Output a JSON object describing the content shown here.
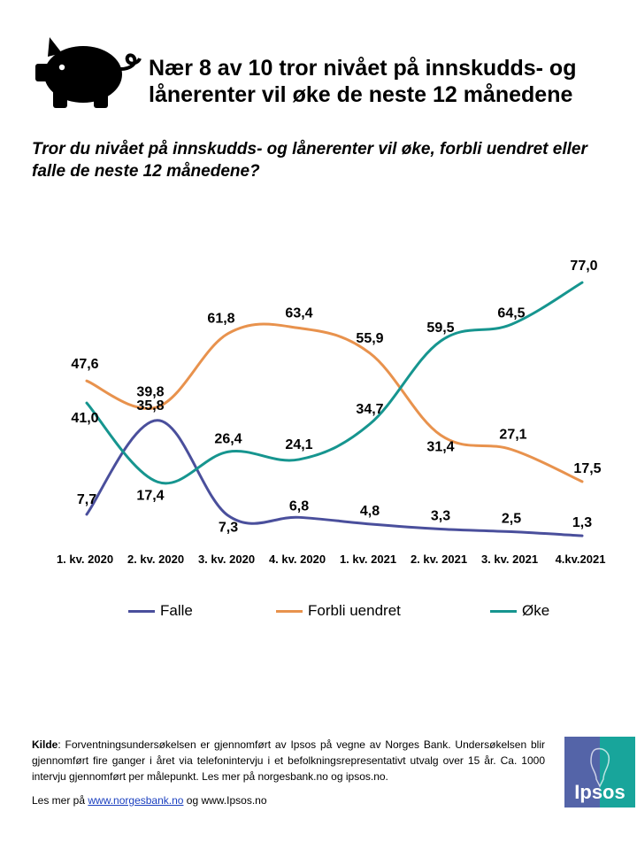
{
  "header": {
    "title": "Nær 8 av 10 tror nivået på innskudds- og lånerenter vil øke de neste 12 månedene",
    "subtitle": "Tror du nivået på innskudds- og lånerenter vil øke, forbli uendret eller falle de neste 12 månedene?"
  },
  "chart_data": {
    "type": "line",
    "title": "Nær 8 av 10 tror nivået på innskudds- og lånerenter vil øke de neste 12 månedene",
    "categories": [
      "1. kv. 2020",
      "2. kv. 2020",
      "3. kv. 2020",
      "4. kv. 2020",
      "1. kv. 2021",
      "2. kv. 2021",
      "3. kv. 2021",
      "4.kv.2021"
    ],
    "ylim": [
      0,
      90
    ],
    "grid": false,
    "legend": "bottom",
    "series": [
      {
        "name": "Falle",
        "color": "#4a4f9c",
        "values": [
          7.7,
          35.8,
          7.3,
          6.8,
          4.8,
          3.3,
          2.5,
          1.3
        ],
        "labels": [
          "7,7",
          "35,8",
          "7,3",
          "6,8",
          "4,8",
          "3,3",
          "2,5",
          "1,3"
        ]
      },
      {
        "name": "Forbli uendret",
        "color": "#e8924d",
        "values": [
          47.6,
          39.8,
          61.8,
          63.4,
          55.9,
          31.4,
          27.1,
          17.5
        ],
        "labels": [
          "47,6",
          "39,8",
          "61,8",
          "63,4",
          "55,9",
          "31,4",
          "27,1",
          "17,5"
        ]
      },
      {
        "name": "Øke",
        "color": "#16958f",
        "values": [
          41.0,
          17.4,
          26.4,
          24.1,
          34.7,
          59.5,
          64.5,
          77.0
        ],
        "labels": [
          "41,0",
          "17,4",
          "26,4",
          "24,1",
          "34,7",
          "59,5",
          "64,5",
          "77,0"
        ]
      }
    ]
  },
  "footer": {
    "kilde_label": "Kilde",
    "text": ": Forventningsundersøkelsen er gjennomført av Ipsos på vegne av Norges Bank. Undersøkelsen blir gjennomført fire ganger i året via telefonintervju i et befolkningsrepresentativt utvalg over 15 år. Ca. 1000 intervju gjennomført per målepunkt. Les mer på norgesbank.no og ipsos.no.",
    "more_prefix": "Les mer på ",
    "link_norgesbank": "www.norgesbank.no",
    "more_mid": " og ",
    "link_ipsos": "www.Ipsos.no"
  },
  "logo": {
    "text": "Ipsos",
    "color_left": "#5464a8",
    "color_right": "#18a59b"
  }
}
